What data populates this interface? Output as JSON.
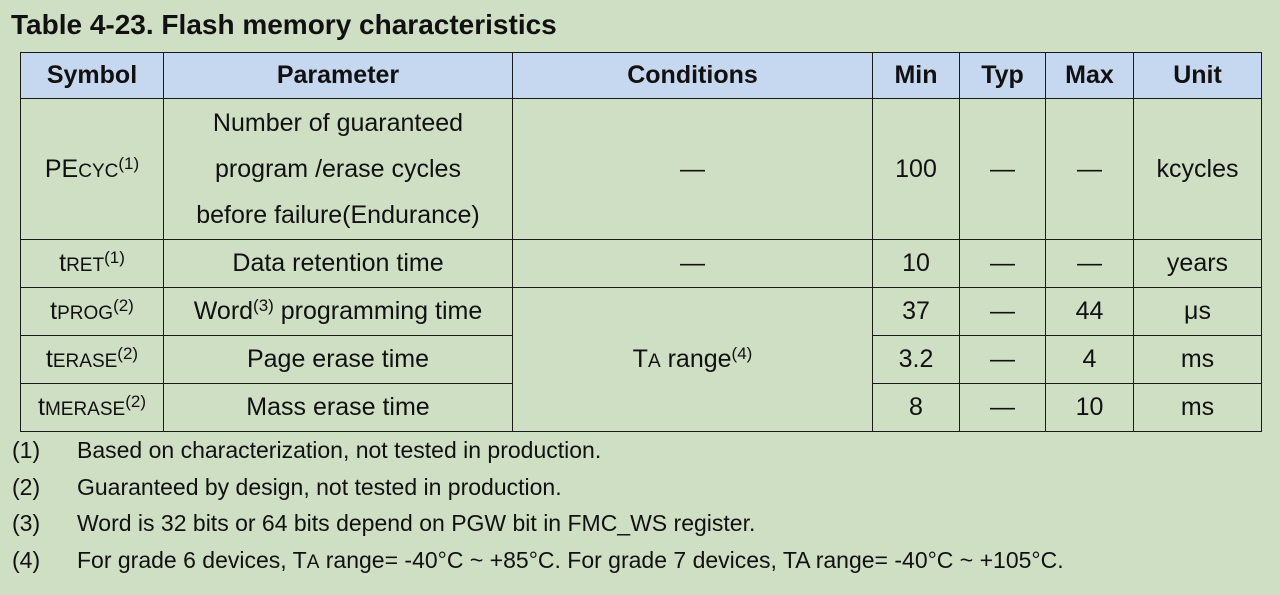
{
  "title": "Table 4-23. Flash memory characteristics",
  "headers": {
    "symbol": "Symbol",
    "parameter": "Parameter",
    "conditions": "Conditions",
    "min": "Min",
    "typ": "Typ",
    "max": "Max",
    "unit": "Unit"
  },
  "rows": [
    {
      "sym_main": "PE",
      "sym_sub": "CYC",
      "sym_note": "(1)",
      "param_lines": [
        "Number of guaranteed",
        "program /erase cycles",
        "before failure(Endurance)"
      ],
      "conditions": "—",
      "min": "100",
      "typ": "—",
      "max": "—",
      "unit": "kcycles"
    },
    {
      "sym_main": "t",
      "sym_sub": "RET",
      "sym_note": "(1)",
      "param": "Data retention time",
      "conditions": "—",
      "min": "10",
      "typ": "—",
      "max": "—",
      "unit": "years"
    },
    {
      "sym_main": "t",
      "sym_sub": "PROG",
      "sym_note": "(2)",
      "param_pre": "Word",
      "param_note": "(3)",
      "param_post": " programming time",
      "min": "37",
      "typ": "—",
      "max": "44",
      "unit": "μs"
    },
    {
      "sym_main": "t",
      "sym_sub": "ERASE",
      "sym_note": "(2)",
      "param": "Page erase time",
      "min": "3.2",
      "typ": "—",
      "max": "4",
      "unit": "ms"
    },
    {
      "sym_main": "t",
      "sym_sub": "MERASE",
      "sym_note": "(2)",
      "param": "Mass erase time",
      "min": "8",
      "typ": "—",
      "max": "10",
      "unit": "ms"
    }
  ],
  "shared_condition": {
    "main": "T",
    "sub": "A",
    "text": " range",
    "note": "(4)"
  },
  "notes": [
    {
      "num": "(1)",
      "text": "Based on characterization, not tested in production."
    },
    {
      "num": "(2)",
      "text": "Guaranteed by design, not tested in production."
    },
    {
      "num": "(3)",
      "text": "Word is 32 bits or 64 bits depend on PGW bit in FMC_WS register."
    },
    {
      "num": "(4)",
      "pre": "For grade 6 devices, T",
      "sub": "A",
      "post": " range= -40°C ~ +85°C. For grade 7 devices, TA range= -40°C ~ +105°C."
    }
  ]
}
